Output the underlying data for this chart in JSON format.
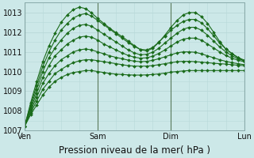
{
  "title": "",
  "xlabel": "Pression niveau de la mer( hPa )",
  "ylabel": "",
  "ylim": [
    1007,
    1013.5
  ],
  "xlim": [
    0,
    72
  ],
  "xtick_positions": [
    0,
    24,
    48,
    72
  ],
  "xtick_labels": [
    "Ven",
    "Sam",
    "Dim",
    "Lun"
  ],
  "ytick_positions": [
    1007,
    1008,
    1009,
    1010,
    1011,
    1012,
    1013
  ],
  "background_color": "#cce8e8",
  "grid_color": "#b8d8d8",
  "line_color": "#1a6b1a",
  "marker": "D",
  "markersize": 2.0,
  "linewidth": 0.8,
  "series": [
    [
      1007.2,
      1007.8,
      1008.3,
      1008.8,
      1009.2,
      1009.5,
      1009.7,
      1009.85,
      1009.95,
      1010.0,
      1010.05,
      1010.05,
      1010.0,
      1009.95,
      1009.9,
      1009.87,
      1009.85,
      1009.83,
      1009.82,
      1009.82,
      1009.83,
      1009.85,
      1009.88,
      1009.92,
      1009.97,
      1010.0,
      1010.03,
      1010.05,
      1010.05,
      1010.05,
      1010.05,
      1010.05,
      1010.05,
      1010.05,
      1010.05,
      1010.05,
      1010.05
    ],
    [
      1007.2,
      1007.9,
      1008.5,
      1009.1,
      1009.5,
      1009.9,
      1010.1,
      1010.3,
      1010.45,
      1010.55,
      1010.6,
      1010.6,
      1010.55,
      1010.5,
      1010.45,
      1010.4,
      1010.35,
      1010.3,
      1010.28,
      1010.27,
      1010.28,
      1010.3,
      1010.35,
      1010.4,
      1010.45,
      1010.5,
      1010.52,
      1010.52,
      1010.5,
      1010.48,
      1010.45,
      1010.42,
      1010.4,
      1010.38,
      1010.35,
      1010.32,
      1010.3
    ],
    [
      1007.2,
      1008.0,
      1008.7,
      1009.4,
      1009.9,
      1010.3,
      1010.6,
      1010.8,
      1011.0,
      1011.1,
      1011.15,
      1011.1,
      1011.0,
      1010.9,
      1010.8,
      1010.72,
      1010.65,
      1010.58,
      1010.53,
      1010.5,
      1010.52,
      1010.57,
      1010.65,
      1010.75,
      1010.85,
      1010.95,
      1011.0,
      1011.0,
      1010.98,
      1010.9,
      1010.8,
      1010.7,
      1010.6,
      1010.52,
      1010.45,
      1010.4,
      1010.35
    ],
    [
      1007.2,
      1008.1,
      1008.9,
      1009.7,
      1010.3,
      1010.8,
      1011.1,
      1011.4,
      1011.6,
      1011.75,
      1011.8,
      1011.75,
      1011.6,
      1011.4,
      1011.25,
      1011.1,
      1010.95,
      1010.82,
      1010.73,
      1010.68,
      1010.7,
      1010.78,
      1010.92,
      1011.1,
      1011.3,
      1011.5,
      1011.65,
      1011.7,
      1011.7,
      1011.6,
      1011.4,
      1011.2,
      1011.0,
      1010.82,
      1010.68,
      1010.58,
      1010.5
    ],
    [
      1007.2,
      1008.2,
      1009.1,
      1010.0,
      1010.7,
      1011.2,
      1011.6,
      1011.95,
      1012.2,
      1012.35,
      1012.4,
      1012.3,
      1012.1,
      1011.9,
      1011.7,
      1011.5,
      1011.3,
      1011.1,
      1010.95,
      1010.85,
      1010.88,
      1010.98,
      1011.18,
      1011.45,
      1011.7,
      1011.95,
      1012.15,
      1012.25,
      1012.25,
      1012.1,
      1011.85,
      1011.55,
      1011.25,
      1011.0,
      1010.8,
      1010.65,
      1010.55
    ],
    [
      1007.2,
      1008.3,
      1009.3,
      1010.25,
      1011.0,
      1011.6,
      1012.1,
      1012.45,
      1012.72,
      1012.88,
      1012.95,
      1012.82,
      1012.6,
      1012.38,
      1012.15,
      1011.92,
      1011.7,
      1011.48,
      1011.28,
      1011.12,
      1011.1,
      1011.22,
      1011.5,
      1011.8,
      1012.1,
      1012.35,
      1012.55,
      1012.65,
      1012.65,
      1012.48,
      1012.18,
      1011.82,
      1011.45,
      1011.15,
      1010.92,
      1010.72,
      1010.58
    ],
    [
      1007.2,
      1008.4,
      1009.5,
      1010.5,
      1011.3,
      1011.95,
      1012.5,
      1012.88,
      1013.15,
      1013.28,
      1013.2,
      1012.98,
      1012.7,
      1012.45,
      1012.2,
      1011.98,
      1011.78,
      1011.55,
      1011.32,
      1011.12,
      1011.05,
      1011.18,
      1011.48,
      1011.85,
      1012.25,
      1012.6,
      1012.88,
      1013.0,
      1013.0,
      1012.8,
      1012.45,
      1012.0,
      1011.52,
      1011.15,
      1010.9,
      1010.7,
      1010.55
    ]
  ],
  "xlabel_fontsize": 8.5,
  "tick_fontsize": 7,
  "fig_bg": "#cce8e8"
}
